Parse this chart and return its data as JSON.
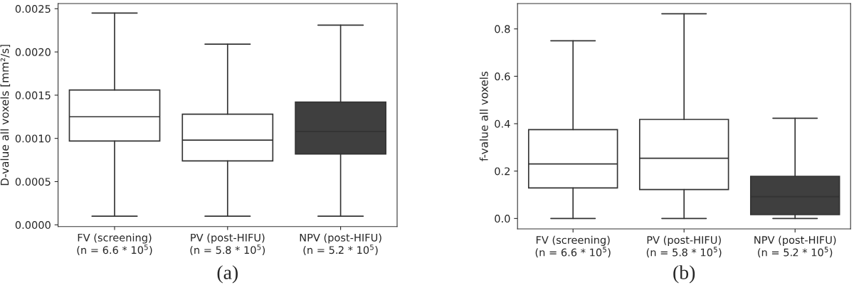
{
  "chart_data": [
    {
      "type": "box",
      "ylabel": "D-value all voxels [mm²/s]",
      "categories": [
        "FV (screening)\n(n = 6.6 * 10$^{5}$)",
        "PV (post-HIFU)\n(n = 5.8 * 10$^{5}$)",
        "NPV (post-HIFU)\n(n = 5.2 * 10$^{5}$)"
      ],
      "colors": [
        "#ffffff",
        "#ffffff",
        "#3f3f3f"
      ],
      "boxes": [
        {
          "low": 0.0001,
          "q1": 0.00097,
          "median": 0.00125,
          "q3": 0.00156,
          "high": 0.00245
        },
        {
          "low": 0.0001,
          "q1": 0.00074,
          "median": 0.00098,
          "q3": 0.00128,
          "high": 0.00209
        },
        {
          "low": 0.0001,
          "q1": 0.00082,
          "median": 0.00108,
          "q3": 0.00142,
          "high": 0.00231
        }
      ],
      "ylim": [
        -2e-05,
        0.00256
      ],
      "yticks": [
        {
          "value": 0,
          "label": "0.0000"
        },
        {
          "value": 0.0005,
          "label": "0.0005"
        },
        {
          "value": 0.001,
          "label": "0.0010"
        },
        {
          "value": 0.0015,
          "label": "0.0015"
        },
        {
          "value": 0.002,
          "label": "0.0020"
        },
        {
          "value": 0.0025,
          "label": "0.0025"
        }
      ],
      "grid": false,
      "annotations": [
        "(a)"
      ]
    },
    {
      "type": "box",
      "ylabel": "f-value all voxels",
      "categories": [
        "FV (screening)\n(n = 6.6 * 10$^{5}$)",
        "PV (post-HIFU)\n(n = 5.8 * 10$^{5}$)",
        "NPV (post-HIFU)\n(n = 5.2 * 10$^{5}$)"
      ],
      "colors": [
        "#ffffff",
        "#ffffff",
        "#3f3f3f"
      ],
      "boxes": [
        {
          "low": 0,
          "q1": 0.129,
          "median": 0.23,
          "q3": 0.375,
          "high": 0.75
        },
        {
          "low": 0,
          "q1": 0.122,
          "median": 0.254,
          "q3": 0.418,
          "high": 0.864
        },
        {
          "low": 0,
          "q1": 0.016,
          "median": 0.092,
          "q3": 0.178,
          "high": 0.423
        }
      ],
      "ylim": [
        -0.044,
        0.907
      ],
      "yticks": [
        {
          "value": 0,
          "label": "0.0"
        },
        {
          "value": 0.2,
          "label": "0.2"
        },
        {
          "value": 0.4,
          "label": "0.4"
        },
        {
          "value": 0.6,
          "label": "0.6"
        },
        {
          "value": 0.8,
          "label": "0.8"
        }
      ],
      "grid": false,
      "annotations": [
        "(b)"
      ]
    }
  ]
}
